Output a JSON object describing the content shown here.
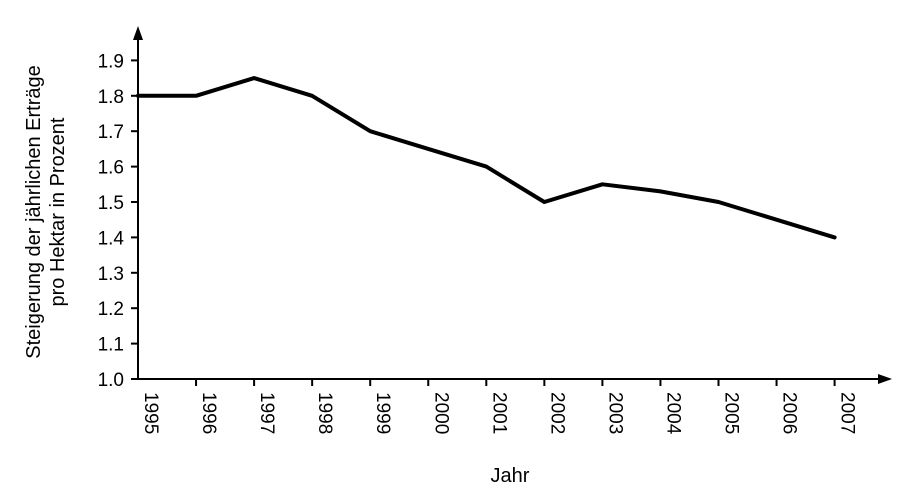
{
  "chart_data": {
    "type": "line",
    "xlabel": "Jahr",
    "ylabel_line1": "Steigerung der jährlichen Erträge",
    "ylabel_line2": "pro Hektar in Prozent",
    "x": [
      "1995",
      "1996",
      "1997",
      "1998",
      "1999",
      "2000",
      "2001",
      "2002",
      "2003",
      "2004",
      "2005",
      "2006",
      "2007"
    ],
    "y": [
      1.8,
      1.8,
      1.85,
      1.8,
      1.7,
      1.65,
      1.6,
      1.5,
      1.55,
      1.53,
      1.5,
      1.45,
      1.4
    ],
    "yticks": [
      "1.0",
      "1.1",
      "1.2",
      "1.3",
      "1.4",
      "1.5",
      "1.6",
      "1.7",
      "1.8",
      "1.9"
    ],
    "ylim": [
      1.0,
      1.9
    ],
    "grid": false,
    "legend": "none",
    "line_color": "#000000"
  }
}
